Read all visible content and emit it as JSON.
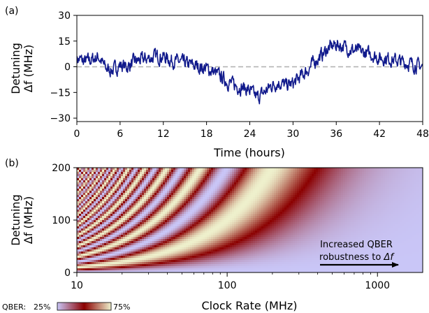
{
  "panel_a": {
    "label": "(a)"
  },
  "panel_b": {
    "label": "(b)"
  },
  "colorbar": {
    "prefix": "QBER:",
    "low": "25%",
    "high": "75%"
  },
  "annotation": {
    "line1": "Increased QBER",
    "line2_text": "robustness to ",
    "line2_symbol": "Δf"
  },
  "colors": {
    "trace": "#111a8c",
    "zero_line": "#b4b4b4",
    "low": "#c9c6f7",
    "mid": "#8b0000",
    "high": "#eef0cc"
  },
  "chart_data": [
    {
      "type": "line",
      "xlabel": "Time (hours)",
      "ylabel_line1": "Detuning",
      "ylabel_line2": "Δf (MHz)",
      "xlim": [
        0,
        48
      ],
      "ylim": [
        -32,
        30
      ],
      "xticks": [
        0,
        6,
        12,
        18,
        24,
        30,
        36,
        42,
        48
      ],
      "yticks": [
        -30,
        -15,
        0,
        15,
        30
      ],
      "ytick_labels": [
        "−30",
        "−15",
        "0",
        "15",
        "30"
      ],
      "reference_line_y": 0,
      "series": [
        {
          "x": [
            0,
            1,
            2,
            3,
            4,
            5,
            6,
            7,
            8,
            9,
            10,
            11,
            12,
            13,
            14,
            15,
            16,
            17,
            18,
            19,
            20,
            21,
            22,
            23,
            24,
            25,
            26,
            27,
            28,
            29,
            30,
            31,
            32,
            33,
            34,
            35,
            36,
            37,
            38,
            39,
            40,
            41,
            42,
            43,
            44,
            45,
            46,
            47,
            48
          ],
          "values": [
            5,
            3,
            4,
            6,
            -1,
            -2,
            1,
            0,
            3,
            4,
            5,
            6,
            6,
            4,
            3,
            2,
            1,
            0,
            -1,
            -3,
            -6,
            -9,
            -11,
            -12,
            -14,
            -18,
            -15,
            -11,
            -9,
            -11,
            -10,
            -6,
            -2,
            3,
            7,
            11,
            13,
            12,
            10,
            9,
            8,
            7,
            5,
            5,
            4,
            3,
            2,
            1,
            0
          ]
        }
      ]
    },
    {
      "type": "heatmap",
      "xlabel": "Clock Rate (MHz)",
      "ylabel_line1": "Detuning",
      "ylabel_line2": "Δf (MHz)",
      "x_scale": "log",
      "xlim": [
        10,
        2000
      ],
      "ylim": [
        0,
        200
      ],
      "xticks": [
        10,
        100,
        1000
      ],
      "xtick_labels": [
        "10",
        "100",
        "1000"
      ],
      "yticks": [
        0,
        100,
        200
      ],
      "value": "QBER",
      "value_range": [
        "25%",
        "75%"
      ]
    }
  ]
}
